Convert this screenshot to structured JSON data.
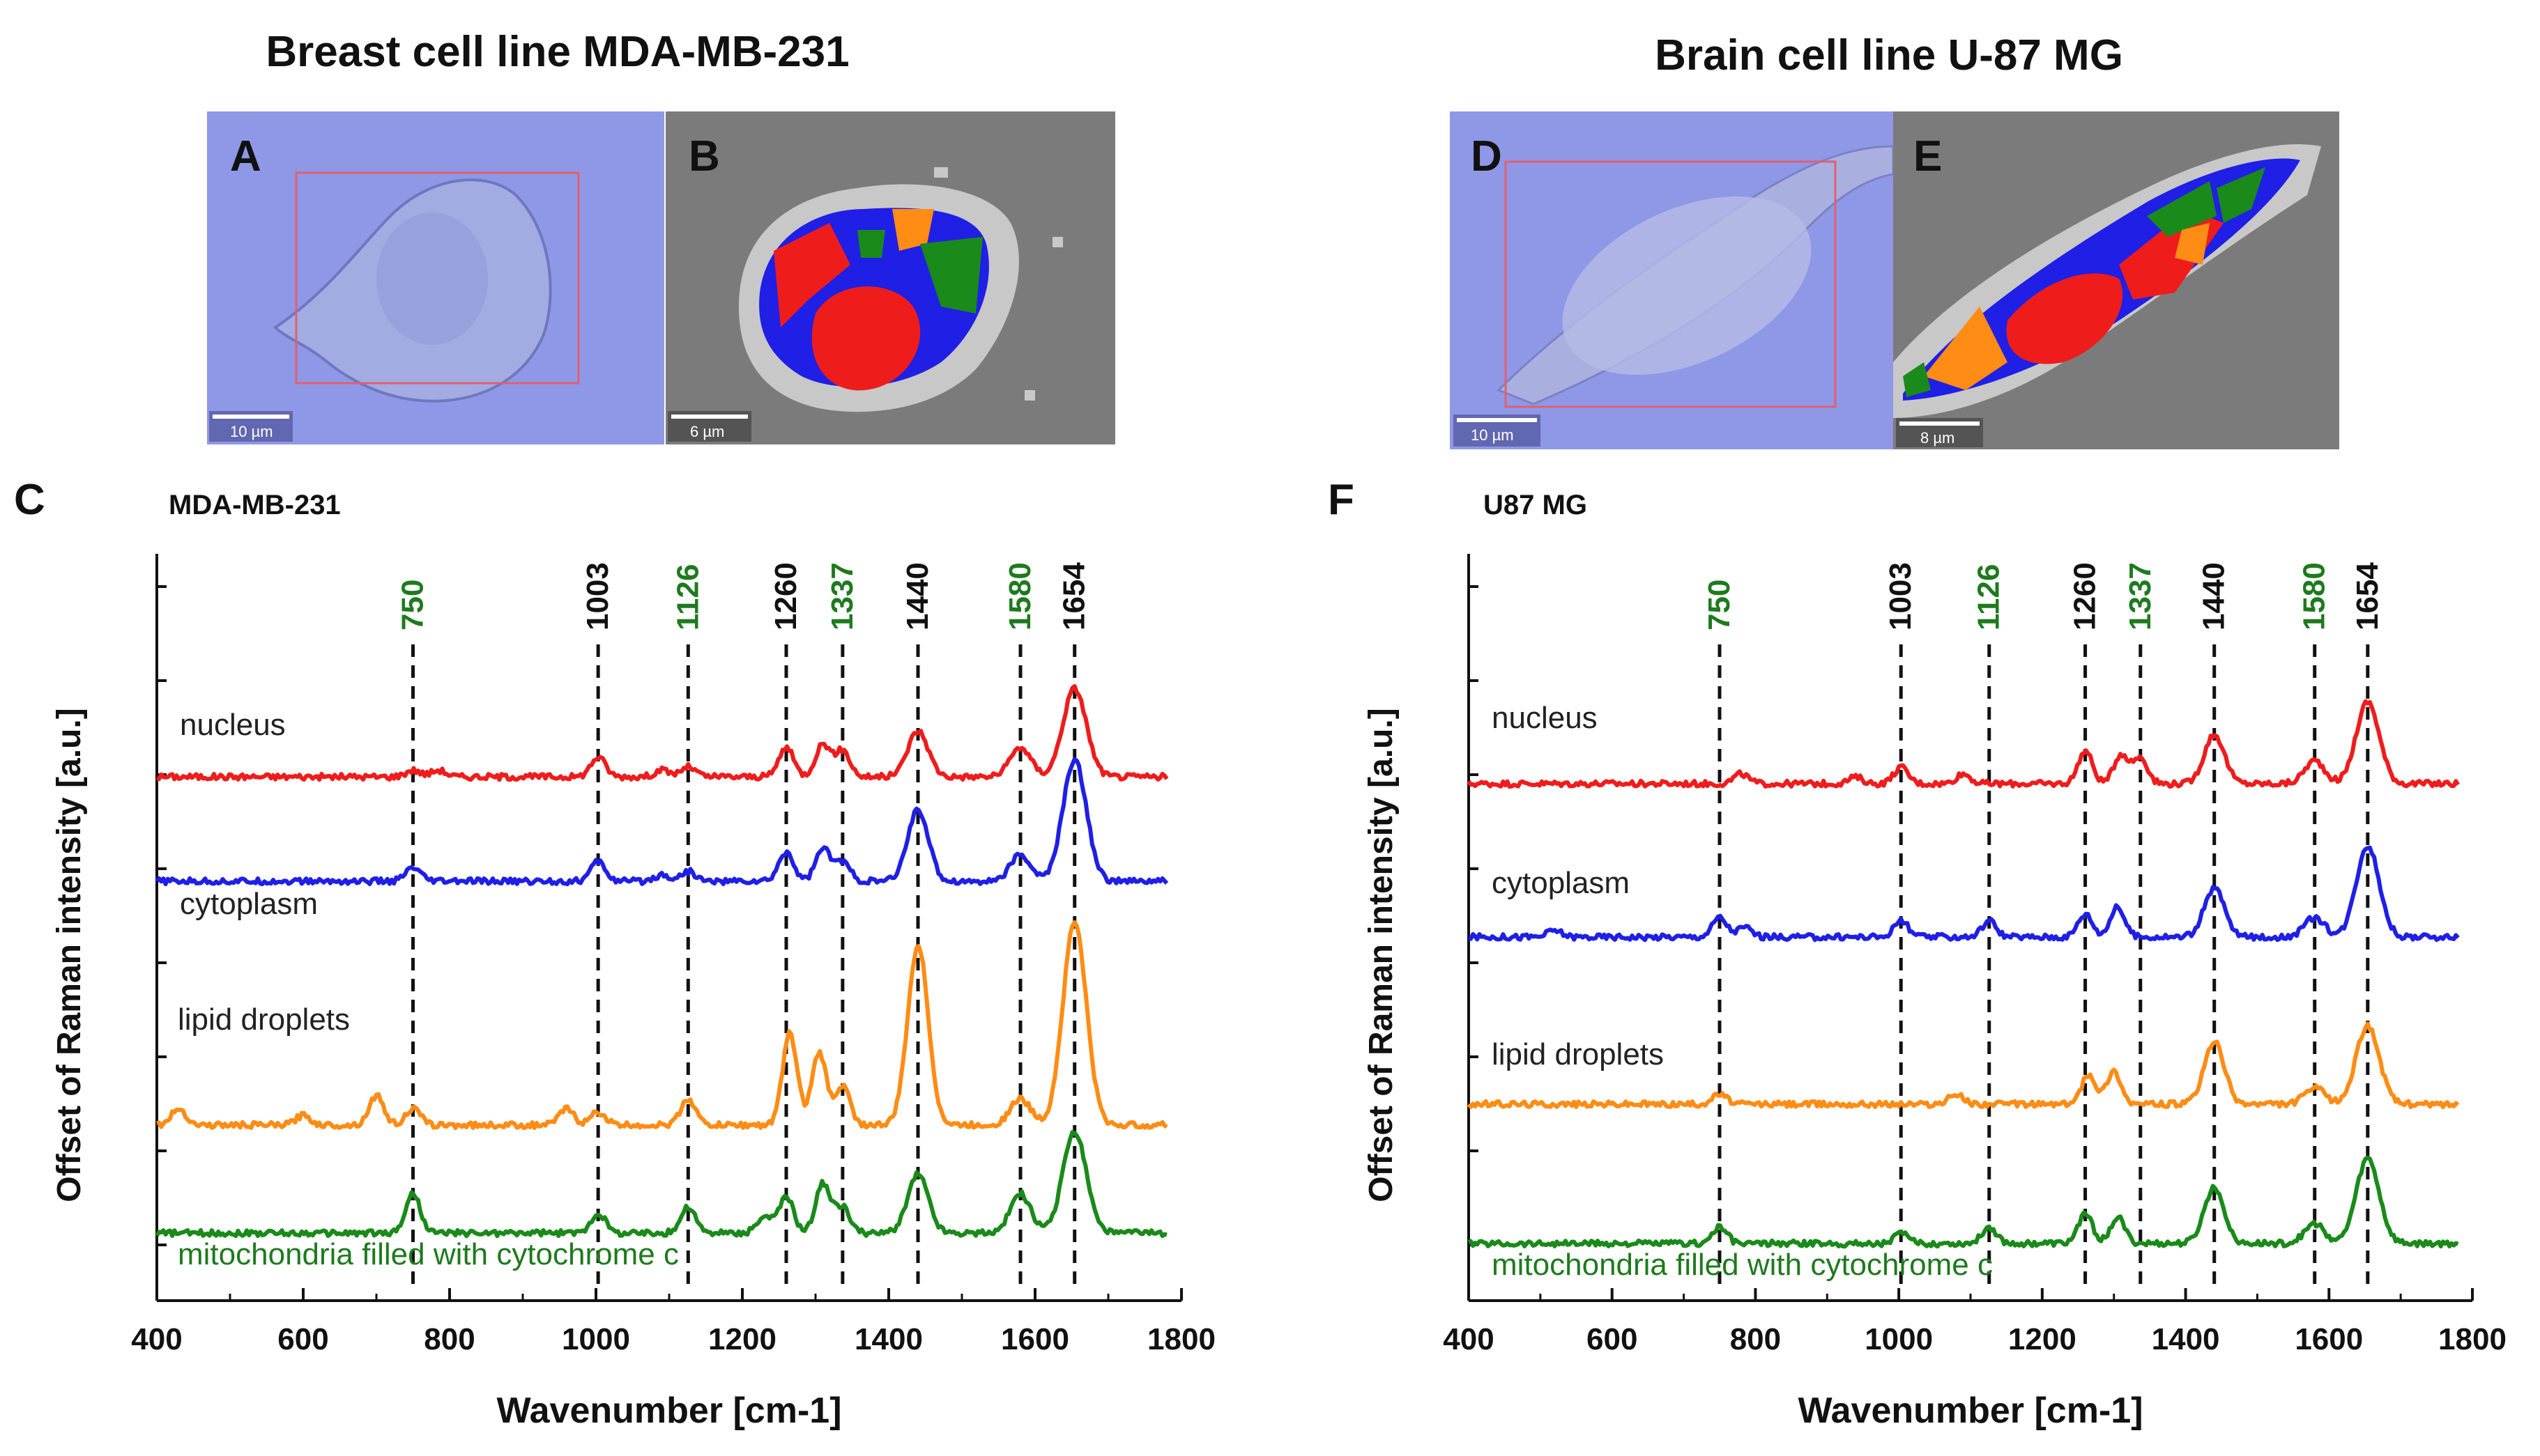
{
  "figure": {
    "left_title": "Breast cell line MDA-MB-231",
    "right_title": "Brain cell line U-87 MG"
  },
  "images": [
    {
      "label": "A",
      "scalebar": "10 µm",
      "kind": "brightfield"
    },
    {
      "label": "B",
      "scalebar": "6 µm",
      "kind": "cluster-map"
    },
    {
      "label": "D",
      "scalebar": "10 µm",
      "kind": "brightfield"
    },
    {
      "label": "E",
      "scalebar": "8 µm",
      "kind": "cluster-map"
    }
  ],
  "colors": {
    "nucleus": "#ef1c1c",
    "cytoplasm": "#1f1fe6",
    "lipid": "#ff8c14",
    "mito": "#1a8a1a",
    "green_text": "#1e7a1e",
    "cluster_bg": "#7b7b7b",
    "cluster_edge": "#c8c8c8",
    "brightfield": "#8f98e6"
  },
  "chart_data": [
    {
      "panel": "C",
      "title": "MDA-MB-231",
      "type": "line",
      "xlabel": "Wavenumber [cm-1]",
      "ylabel": "Offset of Raman intensity [a.u.]",
      "xlim": [
        400,
        1780
      ],
      "xticks": [
        "400",
        "600",
        "800",
        "1000",
        "1200",
        "1400",
        "1600",
        "1800"
      ],
      "peaks": [
        {
          "label": "750",
          "x": 750,
          "color": "green"
        },
        {
          "label": "1003",
          "x": 1003,
          "color": "black"
        },
        {
          "label": "1126",
          "x": 1126,
          "color": "green"
        },
        {
          "label": "1260",
          "x": 1260,
          "color": "black"
        },
        {
          "label": "1337",
          "x": 1337,
          "color": "green"
        },
        {
          "label": "1440",
          "x": 1440,
          "color": "black"
        },
        {
          "label": "1580",
          "x": 1580,
          "color": "green"
        },
        {
          "label": "1654",
          "x": 1654,
          "color": "black"
        }
      ],
      "series": [
        {
          "name": "nucleus",
          "color": "nucleus",
          "baseline": 0.39,
          "amps": {
            "750": 0.02,
            "785": 0.02,
            "1003": 0.06,
            "1090": 0.02,
            "1126": 0.03,
            "1260": 0.09,
            "1310": 0.1,
            "1337": 0.08,
            "1440": 0.14,
            "1580": 0.09,
            "1654": 0.27
          }
        },
        {
          "name": "cytoplasm",
          "color": "cytoplasm",
          "baseline": 0.3,
          "amps": {
            "750": 0.04,
            "1003": 0.06,
            "1090": 0.02,
            "1126": 0.03,
            "1260": 0.09,
            "1310": 0.1,
            "1337": 0.06,
            "1440": 0.22,
            "1580": 0.08,
            "1654": 0.37
          }
        },
        {
          "name": "lipid droplets",
          "color": "lipid",
          "baseline": 0.1,
          "amps": {
            "430": 0.05,
            "600": 0.03,
            "700": 0.09,
            "750": 0.05,
            "960": 0.05,
            "1003": 0.04,
            "1126": 0.08,
            "1265": 0.28,
            "1305": 0.22,
            "1337": 0.12,
            "1440": 0.55,
            "1580": 0.08,
            "1654": 0.62
          }
        },
        {
          "name": "mitochondria filled with cytochrome c",
          "color": "mito",
          "baseline": 0.0,
          "amps": {
            "750": 0.12,
            "1003": 0.06,
            "1126": 0.08,
            "1230": 0.05,
            "1260": 0.11,
            "1310": 0.15,
            "1337": 0.08,
            "1440": 0.18,
            "1580": 0.12,
            "1654": 0.31
          }
        }
      ]
    },
    {
      "panel": "F",
      "title": "U87 MG",
      "type": "line",
      "xlabel": "Wavenumber [cm-1]",
      "ylabel": "Offset of Raman intensity [a.u.]",
      "xlim": [
        400,
        1780
      ],
      "xticks": [
        "400",
        "600",
        "800",
        "1000",
        "1200",
        "1400",
        "1600",
        "1800"
      ],
      "peaks": [
        {
          "label": "750",
          "x": 750,
          "color": "green"
        },
        {
          "label": "1003",
          "x": 1003,
          "color": "black"
        },
        {
          "label": "1126",
          "x": 1126,
          "color": "green"
        },
        {
          "label": "1260",
          "x": 1260,
          "color": "black"
        },
        {
          "label": "1337",
          "x": 1337,
          "color": "green"
        },
        {
          "label": "1440",
          "x": 1440,
          "color": "black"
        },
        {
          "label": "1580",
          "x": 1580,
          "color": "green"
        },
        {
          "label": "1654",
          "x": 1654,
          "color": "black"
        }
      ],
      "series": [
        {
          "name": "nucleus",
          "color": "nucleus",
          "baseline": 0.5,
          "amps": {
            "780": 0.03,
            "940": 0.02,
            "1003": 0.05,
            "1090": 0.03,
            "1260": 0.1,
            "1310": 0.09,
            "1337": 0.08,
            "1440": 0.15,
            "1580": 0.07,
            "1654": 0.25
          }
        },
        {
          "name": "cytoplasm",
          "color": "cytoplasm",
          "baseline": 0.3,
          "amps": {
            "520": 0.02,
            "750": 0.06,
            "785": 0.03,
            "1003": 0.05,
            "1126": 0.05,
            "1260": 0.07,
            "1305": 0.09,
            "1440": 0.15,
            "1580": 0.06,
            "1654": 0.28
          }
        },
        {
          "name": "lipid droplets",
          "color": "lipid",
          "baseline": 0.15,
          "amps": {
            "750": 0.03,
            "1080": 0.03,
            "1265": 0.09,
            "1300": 0.1,
            "1440": 0.19,
            "1580": 0.05,
            "1654": 0.24
          }
        },
        {
          "name": "mitochondria filled with cytochrome c",
          "color": "mito",
          "baseline": 0.0,
          "amps": {
            "750": 0.05,
            "1003": 0.03,
            "1126": 0.05,
            "1260": 0.09,
            "1305": 0.08,
            "1440": 0.17,
            "1580": 0.06,
            "1654": 0.26
          }
        }
      ]
    }
  ]
}
